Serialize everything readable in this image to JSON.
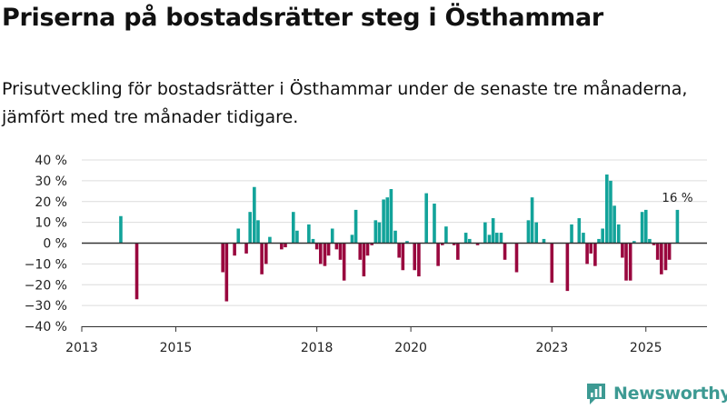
{
  "title": "Priserna på bostadsrätter steg i Östhammar",
  "subtitle": "Prisutveckling för bostadsrätter i Östhammar under de senaste tre månaderna, jämfört med tre månader tidigare.",
  "brand": {
    "name": "Newsworthy",
    "color": "#3d9a93"
  },
  "colors": {
    "positive": "#12a39a",
    "negative": "#99073e",
    "grid": "#dcdcdc",
    "zero": "#333333"
  },
  "chart_data": {
    "type": "bar",
    "title": "Priserna på bostadsrätter steg i Östhammar",
    "xlabel": "",
    "ylabel": "",
    "ylim": [
      -40,
      40
    ],
    "yticks": [
      -40,
      -30,
      -20,
      -10,
      0,
      10,
      20,
      30,
      40
    ],
    "ytick_labels": [
      "−40 %",
      "−30 %",
      "−20 %",
      "−10 %",
      "0 %",
      "10 %",
      "20 %",
      "30 %",
      "40 %"
    ],
    "xlim": [
      2013,
      2026.3
    ],
    "xticks": [
      2013,
      2015,
      2018,
      2020,
      2023,
      2025
    ],
    "xtick_labels": [
      "2013",
      "2015",
      "2018",
      "2020",
      "2023",
      "2025"
    ],
    "annotation": {
      "text": "16 %",
      "x": 2025.67,
      "y": 16
    },
    "series": [
      {
        "name": "Prisutveckling (%)",
        "x": [
          2013.83,
          2014.17,
          2016.0,
          2016.08,
          2016.25,
          2016.33,
          2016.5,
          2016.58,
          2016.67,
          2016.75,
          2016.83,
          2016.92,
          2017.0,
          2017.08,
          2017.25,
          2017.33,
          2017.5,
          2017.58,
          2017.67,
          2017.83,
          2017.92,
          2018.0,
          2018.08,
          2018.17,
          2018.25,
          2018.33,
          2018.42,
          2018.5,
          2018.58,
          2018.67,
          2018.75,
          2018.83,
          2018.92,
          2019.0,
          2019.08,
          2019.17,
          2019.25,
          2019.33,
          2019.42,
          2019.5,
          2019.58,
          2019.67,
          2019.75,
          2019.83,
          2019.92,
          2020.0,
          2020.08,
          2020.17,
          2020.25,
          2020.33,
          2020.5,
          2020.58,
          2020.67,
          2020.75,
          2020.92,
          2021.0,
          2021.17,
          2021.25,
          2021.42,
          2021.58,
          2021.67,
          2021.75,
          2021.83,
          2021.92,
          2022.0,
          2022.25,
          2022.5,
          2022.58,
          2022.67,
          2022.75,
          2022.83,
          2023.0,
          2023.33,
          2023.42,
          2023.58,
          2023.67,
          2023.75,
          2023.83,
          2023.92,
          2024.0,
          2024.08,
          2024.17,
          2024.25,
          2024.33,
          2024.42,
          2024.5,
          2024.58,
          2024.67,
          2024.75,
          2024.92,
          2025.0,
          2025.08,
          2025.17,
          2025.25,
          2025.33,
          2025.42,
          2025.5,
          2025.58,
          2025.67
        ],
        "values": [
          13,
          -27,
          -14,
          -28,
          -6,
          7,
          -5,
          15,
          27,
          11,
          -15,
          -10,
          3,
          0,
          -3,
          -2,
          15,
          6,
          0,
          9,
          2,
          -3,
          -10,
          -11,
          -6,
          7,
          -3,
          -8,
          -18,
          0,
          4,
          16,
          -8,
          -16,
          -6,
          -1,
          11,
          10,
          21,
          22,
          26,
          6,
          -7,
          -13,
          1,
          0,
          -13,
          -16,
          0,
          24,
          19,
          -11,
          -1,
          8,
          -1,
          -8,
          5,
          2,
          -1,
          10,
          4,
          12,
          5,
          5,
          -8,
          -14,
          11,
          22,
          10,
          0,
          2,
          -19,
          -23,
          9,
          12,
          5,
          -10,
          -5,
          -11,
          2,
          7,
          33,
          30,
          18,
          9,
          -7,
          -18,
          -18,
          1,
          15,
          16,
          2,
          -1,
          -8,
          -15,
          -13,
          -8,
          0,
          16
        ]
      }
    ]
  }
}
